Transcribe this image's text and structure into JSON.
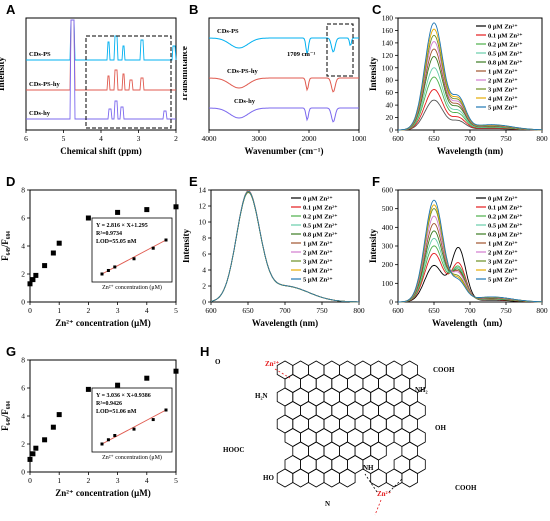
{
  "panels": {
    "A": {
      "label": "A",
      "xlabel": "Chemical shift (ppm)",
      "ylabel": "Intensity",
      "xticks": [
        "6",
        "5",
        "4",
        "3",
        "2"
      ],
      "series": [
        {
          "name": "CDs-PS",
          "color": "#00b0f0"
        },
        {
          "name": "CDs-PS-hy",
          "color": "#e05a4f"
        },
        {
          "name": "CDs-hy",
          "color": "#7b68ee"
        }
      ]
    },
    "B": {
      "label": "B",
      "xlabel": "Wavenumber (cm⁻¹)",
      "ylabel": "Transmittance",
      "xticks": [
        "4000",
        "3000",
        "2000",
        "1000"
      ],
      "annotation": "1709 cm⁻¹",
      "series": [
        {
          "name": "CDs-PS",
          "color": "#00b0f0"
        },
        {
          "name": "CDs-PS-hy",
          "color": "#e05a4f"
        },
        {
          "name": "CDs-hy",
          "color": "#7b68ee"
        }
      ]
    },
    "C": {
      "label": "C",
      "xlabel": "Wavelength (nm)",
      "ylabel": "Intensity",
      "xticks": [
        "600",
        "650",
        "700",
        "750",
        "800"
      ],
      "yticks": [
        "0",
        "20",
        "40",
        "60",
        "80",
        "100",
        "120",
        "140",
        "160",
        "180"
      ]
    },
    "D": {
      "label": "D",
      "xlabel": "Zn²⁺ concentration (μM)",
      "ylabel": "F₆₄₉/F₆₈₄",
      "xticks": [
        "0",
        "1",
        "2",
        "3",
        "4",
        "5"
      ],
      "yticks": [
        "0",
        "2",
        "4",
        "6",
        "8"
      ],
      "inset": {
        "eq": "Y = 2.816 × X+1.295",
        "r2": "R²=0.9734",
        "lod": "LOD=55.05 nM",
        "xlabel": "Zn²⁺ concentration (μM)",
        "ylabel": "F₆₄₉/F₆₈₄"
      }
    },
    "E": {
      "label": "E",
      "xlabel": "Wavelength (nm)",
      "ylabel": "Intensity",
      "xticks": [
        "600",
        "650",
        "700",
        "750",
        "800"
      ],
      "yticks": [
        "0",
        "2",
        "4",
        "6",
        "8",
        "10",
        "12",
        "14"
      ]
    },
    "F": {
      "label": "F",
      "xlabel": "Wavelength（nm）",
      "ylabel": "Intensity",
      "xticks": [
        "600",
        "650",
        "700",
        "750",
        "800"
      ],
      "yticks": [
        "0",
        "100",
        "200",
        "300",
        "400",
        "500",
        "600"
      ]
    },
    "G": {
      "label": "G",
      "xlabel": "Zn²⁺ concentration (μM)",
      "ylabel": "F₆₄₉/F₆₈₄",
      "xticks": [
        "0",
        "1",
        "2",
        "3",
        "4",
        "5"
      ],
      "yticks": [
        "0",
        "2",
        "4",
        "6",
        "8"
      ],
      "inset": {
        "eq": "Y = 3.036 × X+0.9386",
        "r2": "R²=0.9426",
        "lod": "LOD=51.06 nM",
        "xlabel": "Zn²⁺ concentration (μM)",
        "ylabel": "F₆₄₉/F₆₈₄"
      }
    },
    "H": {
      "label": "H",
      "zn": "Zn²⁺",
      "groups": [
        "H₂N",
        "NH₂",
        "OH",
        "HO",
        "COOH",
        "HOOC",
        "O",
        "N",
        "NH"
      ]
    }
  },
  "legend_c": [
    "0 μM Zn²⁺",
    "0.1 μM Zn²⁺",
    "0.2 μM Zn²⁺",
    "0.5 μM Zn²⁺",
    "0.8 μM Zn²⁺",
    "1 μM Zn²⁺",
    "2 μM Zn²⁺",
    "3 μM Zn²⁺",
    "4 μM Zn²⁺",
    "5 μM Zn²⁺"
  ],
  "legend_colors": [
    "#000000",
    "#e41a1c",
    "#4daf4a",
    "#66cdaa",
    "#3a7a20",
    "#a0522d",
    "#d27ccf",
    "#6b8e23",
    "#e6ab02",
    "#1f77b4"
  ],
  "chart_data": [
    {
      "panel": "C",
      "type": "line",
      "xlabel": "Wavelength (nm)",
      "ylabel": "Intensity",
      "xlim": [
        600,
        800
      ],
      "ylim": [
        0,
        180
      ],
      "x": [
        600,
        610,
        620,
        630,
        640,
        650,
        660,
        670,
        680,
        690,
        700,
        720,
        750,
        800
      ],
      "series": [
        {
          "name": "0 μM Zn²⁺",
          "peak": 48
        },
        {
          "name": "0.1 μM Zn²⁺",
          "peak": 65
        },
        {
          "name": "0.2 μM Zn²⁺",
          "peak": 85
        },
        {
          "name": "0.5 μM Zn²⁺",
          "peak": 100
        },
        {
          "name": "0.8 μM Zn²⁺",
          "peak": 118
        },
        {
          "name": "1 μM Zn²⁺",
          "peak": 130
        },
        {
          "name": "2 μM Zn²⁺",
          "peak": 142
        },
        {
          "name": "3 μM Zn²⁺",
          "peak": 152
        },
        {
          "name": "4 μM Zn²⁺",
          "peak": 162
        },
        {
          "name": "5 μM Zn²⁺",
          "peak": 172
        }
      ]
    },
    {
      "panel": "D",
      "type": "scatter",
      "xlabel": "Zn²⁺ concentration (μM)",
      "ylabel": "F₆₄₉/F₆₈₄",
      "xlim": [
        0,
        5
      ],
      "ylim": [
        0,
        8
      ],
      "x": [
        0,
        0.1,
        0.2,
        0.5,
        0.8,
        1,
        2,
        3,
        4,
        5
      ],
      "y": [
        1.3,
        1.6,
        1.9,
        2.6,
        3.5,
        4.2,
        6.0,
        6.4,
        6.6,
        6.8
      ]
    },
    {
      "panel": "E",
      "type": "line",
      "xlabel": "Wavelength (nm)",
      "ylabel": "Intensity",
      "xlim": [
        600,
        800
      ],
      "ylim": [
        0,
        14
      ],
      "peak_x": 650,
      "peak_y": 13.2
    },
    {
      "panel": "F",
      "type": "line",
      "xlabel": "Wavelength（nm）",
      "ylabel": "Intensity",
      "xlim": [
        600,
        800
      ],
      "ylim": [
        0,
        600
      ],
      "series_peaks": [
        195,
        260,
        300,
        340,
        380,
        420,
        460,
        500,
        520,
        545
      ],
      "second_peak_0": 285
    },
    {
      "panel": "G",
      "type": "scatter",
      "xlabel": "Zn²⁺ concentration (μM)",
      "ylabel": "F₆₄₉/F₆₈₄",
      "xlim": [
        0,
        5
      ],
      "ylim": [
        0,
        8
      ],
      "x": [
        0,
        0.1,
        0.2,
        0.5,
        0.8,
        1,
        2,
        3,
        4,
        5
      ],
      "y": [
        0.9,
        1.3,
        1.7,
        2.3,
        3.2,
        4.1,
        5.9,
        6.2,
        6.7,
        7.2
      ]
    }
  ]
}
